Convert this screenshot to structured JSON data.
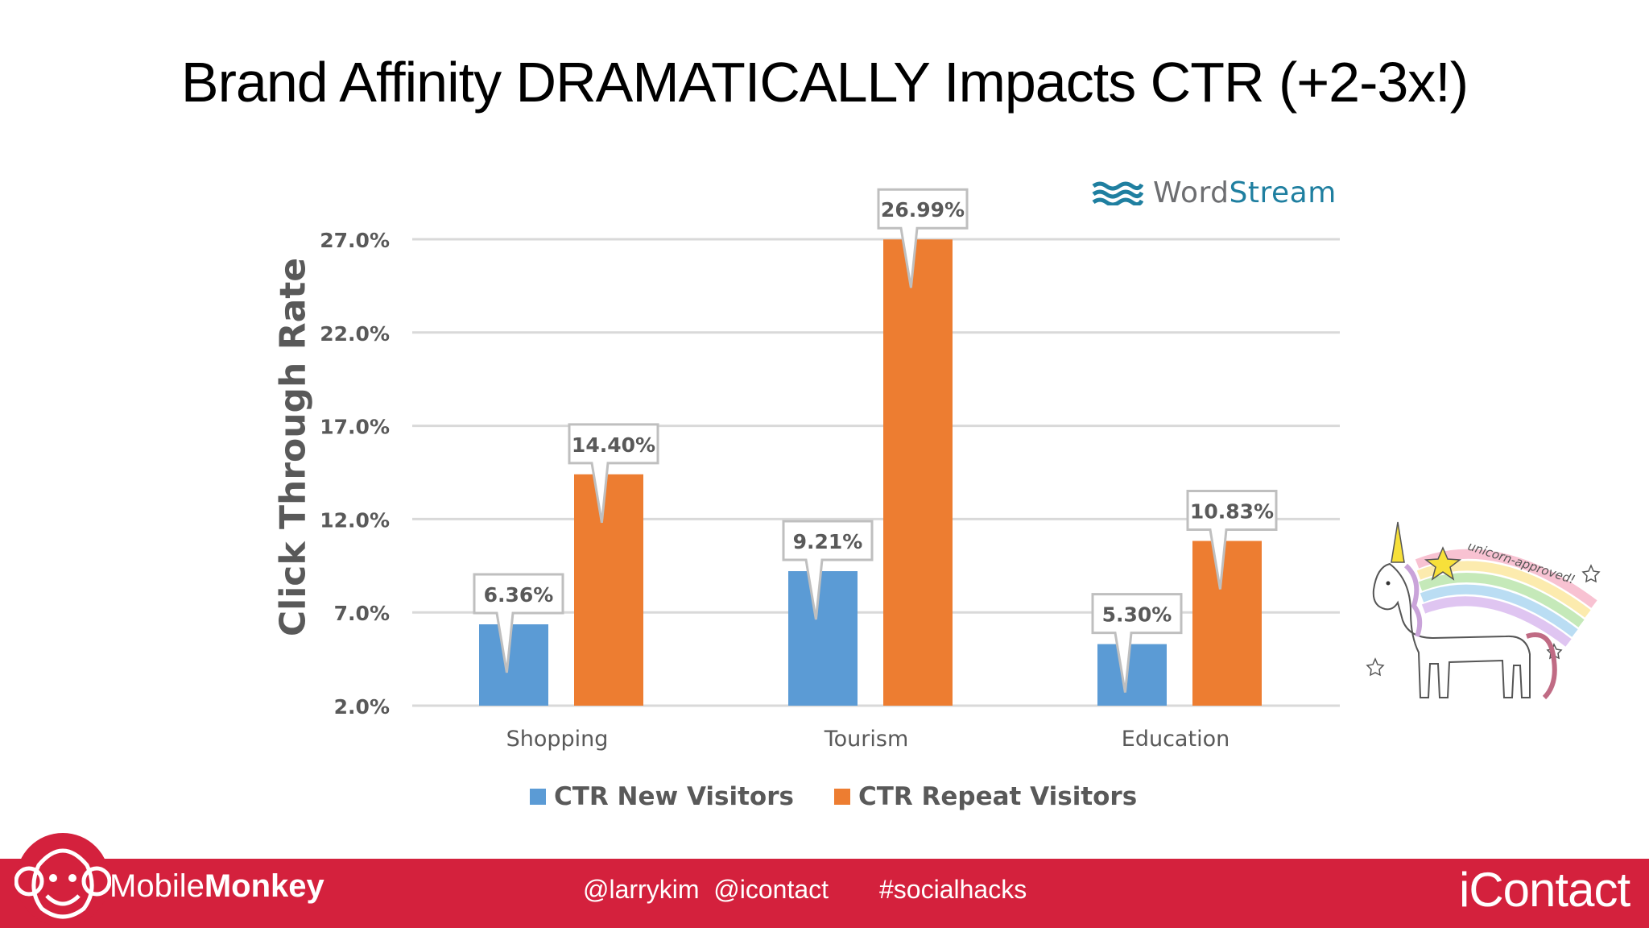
{
  "slide": {
    "title": "Brand Affinity DRAMATICALLY Impacts CTR (+2-3x!)"
  },
  "chart_data": {
    "type": "bar",
    "categories": [
      "Shopping",
      "Tourism",
      "Education"
    ],
    "series": [
      {
        "name": "CTR New Visitors",
        "values": [
          6.36,
          9.21,
          5.3
        ],
        "labels": [
          "6.36%",
          "9.21%",
          "5.30%"
        ],
        "color": "#5b9bd5"
      },
      {
        "name": "CTR Repeat Visitors",
        "values": [
          14.4,
          26.99,
          10.83
        ],
        "labels": [
          "14.40%",
          "26.99%",
          "10.83%"
        ],
        "color": "#ed7d31"
      }
    ],
    "ylabel": "Click Through Rate",
    "xlabel": "",
    "ylim": [
      2.0,
      27.0
    ],
    "yticks": [
      "2.0%",
      "7.0%",
      "12.0%",
      "17.0%",
      "22.0%",
      "27.0%"
    ],
    "ytick_values": [
      2,
      7,
      12,
      17,
      22,
      27
    ],
    "grid": true,
    "legend": "bottom"
  },
  "logos": {
    "wordstream_word": "Word",
    "wordstream_stream": "Stream",
    "unicorn_text": "unicorn-approved!",
    "mobilemonkey_light": "Mobile",
    "mobilemonkey_bold": "Monkey",
    "icontact": "iContact"
  },
  "footer": {
    "handles": "@larrykim  @icontact",
    "hashtag": "#socialhacks",
    "color": "#d4213d"
  }
}
